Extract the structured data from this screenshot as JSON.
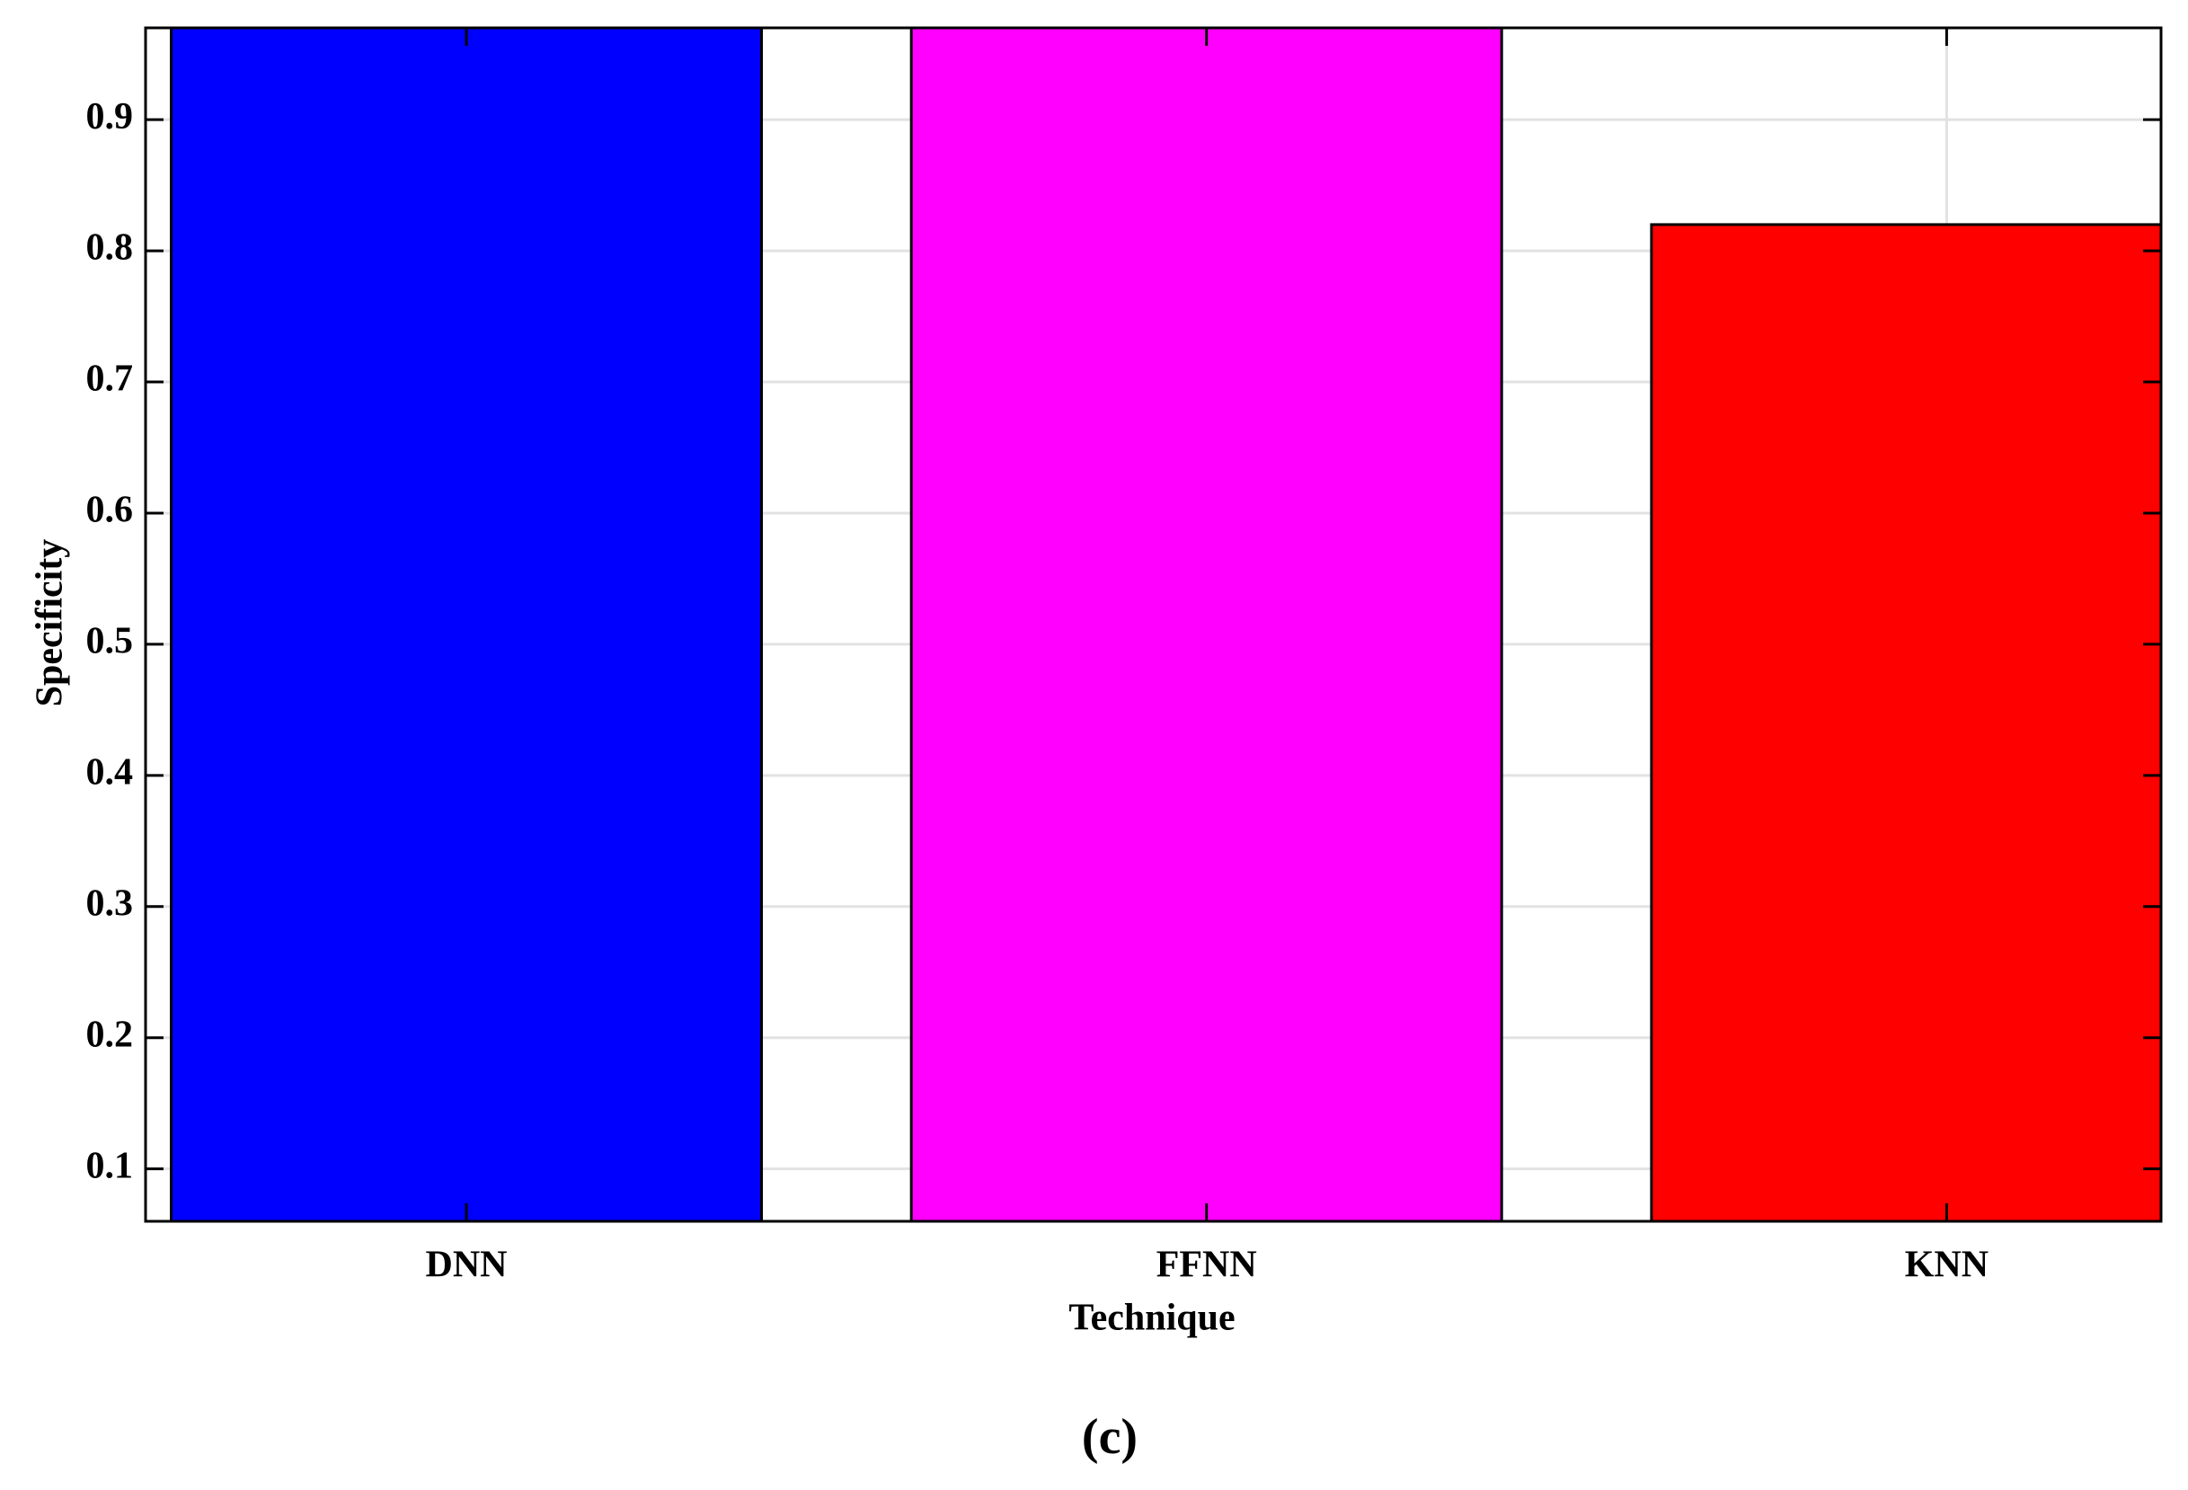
{
  "chart_data": {
    "type": "bar",
    "x_label": "Technique",
    "y_label": "Specificity",
    "categories": [
      "DNN",
      "FFNN",
      "KNN"
    ],
    "values": [
      0.97,
      0.97,
      0.82
    ],
    "colors": [
      "#0000ff",
      "#ff00ff",
      "#ff0000"
    ],
    "ylim": [
      0.06,
      0.97
    ],
    "yticks": [
      0.1,
      0.2,
      0.3,
      0.4,
      0.5,
      0.6,
      0.7,
      0.8,
      0.9
    ],
    "grid": true
  },
  "caption": "(c)"
}
